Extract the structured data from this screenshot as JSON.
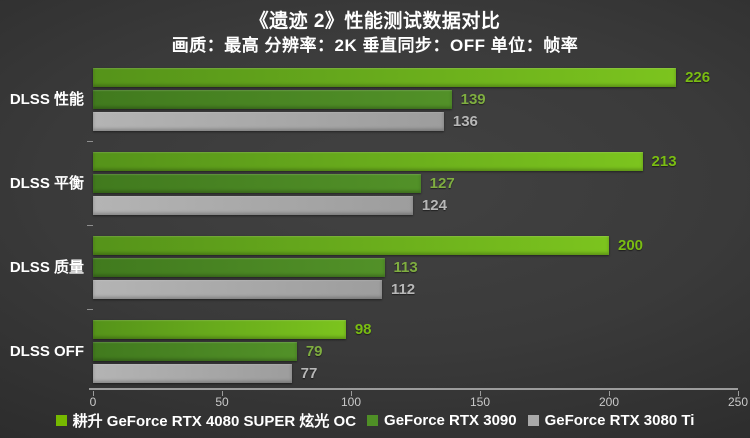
{
  "title": "《遗迹 2》性能测试数据对比",
  "subtitle": "画质：最高 分辨率：2K 垂直同步：OFF 单位：帧率",
  "colors": {
    "background_center": "#424242",
    "background_edge": "#232323",
    "title_text": "#ffffff",
    "category_text": "#ffffff",
    "axis_line": "#9c9c9c",
    "tick_text": "#c9c9c9",
    "legend_text": "#ffffff"
  },
  "chart_data": {
    "type": "bar",
    "orientation": "horizontal",
    "title": "《遗迹 2》性能测试数据对比",
    "subtitle": "画质：最高 分辨率：2K 垂直同步：OFF 单位：帧率",
    "unit": "帧率",
    "categories": [
      "DLSS 性能",
      "DLSS 平衡",
      "DLSS 质量",
      "DLSS OFF"
    ],
    "series": [
      {
        "name": "耕升 GeForce RTX 4080 SUPER 炫光 OC",
        "values": [
          226,
          213,
          200,
          98
        ],
        "color": "#76b900",
        "gradient": [
          "#55931a",
          "#7cc41e"
        ],
        "label_color": "#7abd12"
      },
      {
        "name": "GeForce RTX 3090",
        "values": [
          139,
          127,
          113,
          79
        ],
        "color": "#4f8f26",
        "gradient": [
          "#417a1e",
          "#529128"
        ],
        "label_color": "#7fae40"
      },
      {
        "name": "GeForce RTX 3080 Ti",
        "values": [
          136,
          124,
          112,
          77
        ],
        "color": "#a9a9a9",
        "gradient": [
          "#b4b4b4",
          "#9d9d9d"
        ],
        "label_color": "#b7b7b7"
      }
    ],
    "xlim": [
      0,
      250
    ],
    "x_ticks": [
      0,
      50,
      100,
      150,
      200,
      250
    ],
    "grid": false,
    "value_labels": true,
    "legend_position": "bottom"
  }
}
